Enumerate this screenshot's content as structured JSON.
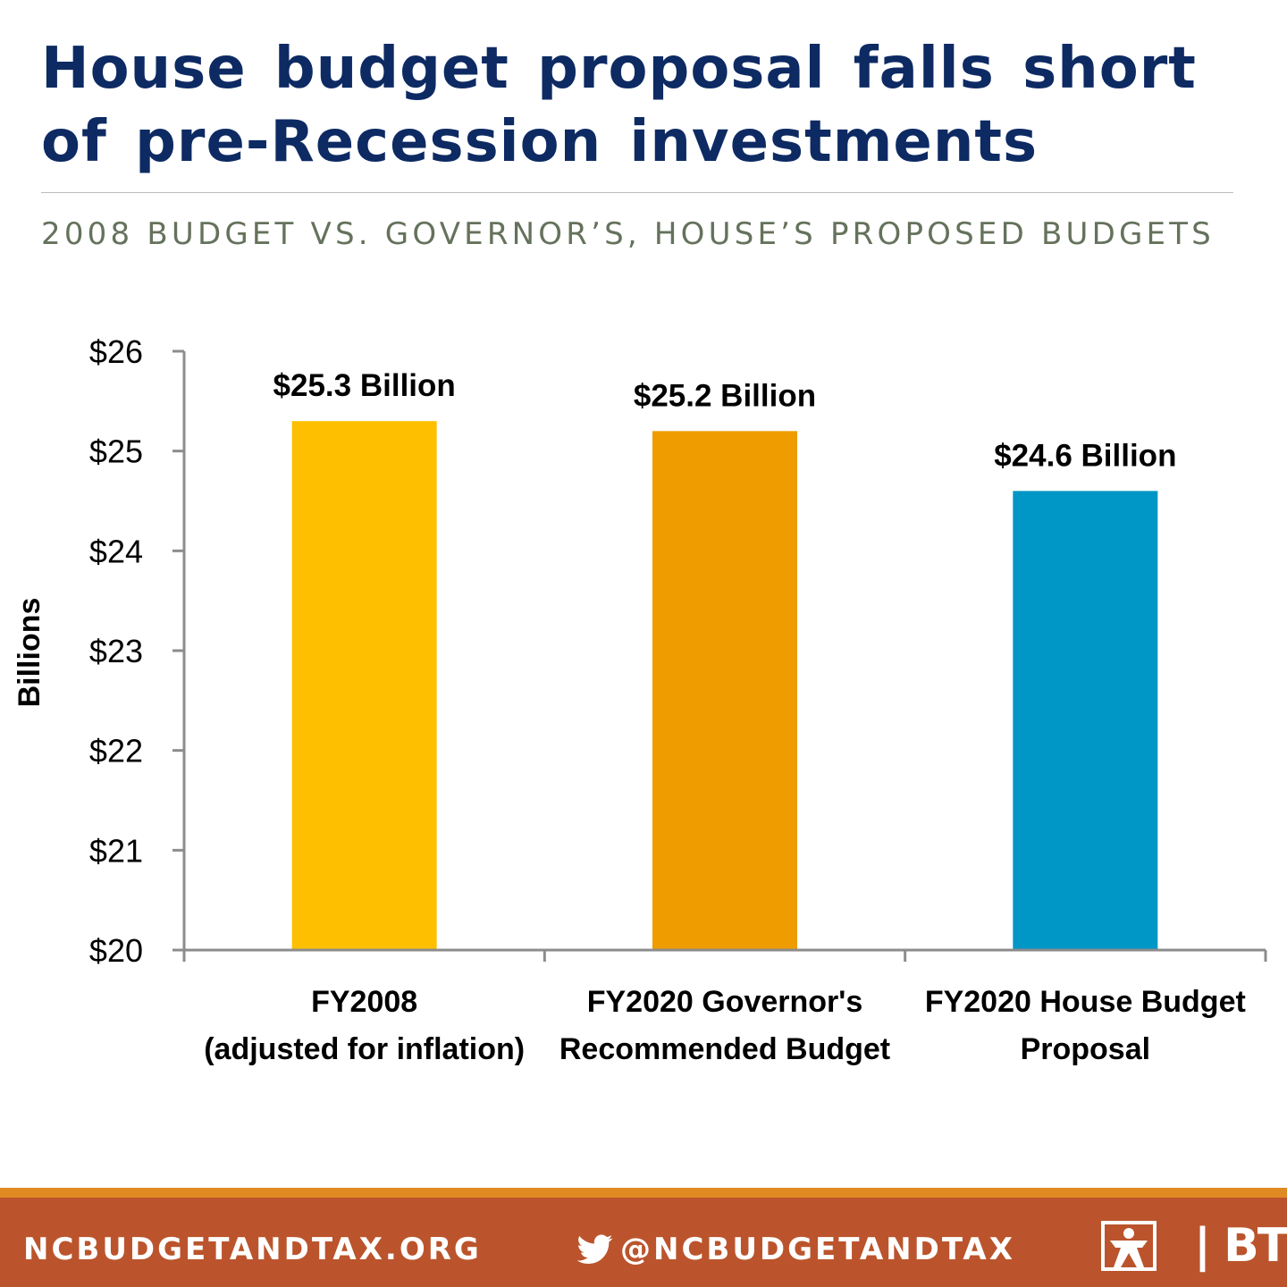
{
  "title": "House budget proposal falls short of pre-Recession investments",
  "subtitle": "2008 BUDGET VS. GOVERNOR’S, HOUSE’S PROPOSED BUDGETS",
  "chart_data": {
    "type": "bar",
    "categories": [
      [
        "FY2008",
        "(adjusted for inflation)"
      ],
      [
        "FY2020 Governor's",
        "Recommended Budget"
      ],
      [
        "FY2020 House Budget",
        "Proposal"
      ]
    ],
    "values": [
      25.3,
      25.2,
      24.6
    ],
    "data_labels": [
      "$25.3 Billion",
      "$25.2 Billion",
      "$24.6 Billion"
    ],
    "colors": [
      "#fdbf00",
      "#ee9c00",
      "#0096c6"
    ],
    "ylabel": "Billions",
    "ylim": [
      20,
      26
    ],
    "yticks": [
      20,
      21,
      22,
      23,
      24,
      25,
      26
    ],
    "ytick_labels": [
      "$20",
      "$21",
      "$22",
      "$23",
      "$24",
      "$25",
      "$26"
    ],
    "grid": false,
    "legend": "none"
  },
  "footer": {
    "url": "NCBUDGETANDTAX.ORG",
    "twitter_icon": "twitter-bird-icon",
    "handle": "@NCBUDGETANDTAX",
    "brand_icon": "btc-logo-icon",
    "brand": "| BTC",
    "background": "#bb542c",
    "accent": "#e08a22"
  }
}
